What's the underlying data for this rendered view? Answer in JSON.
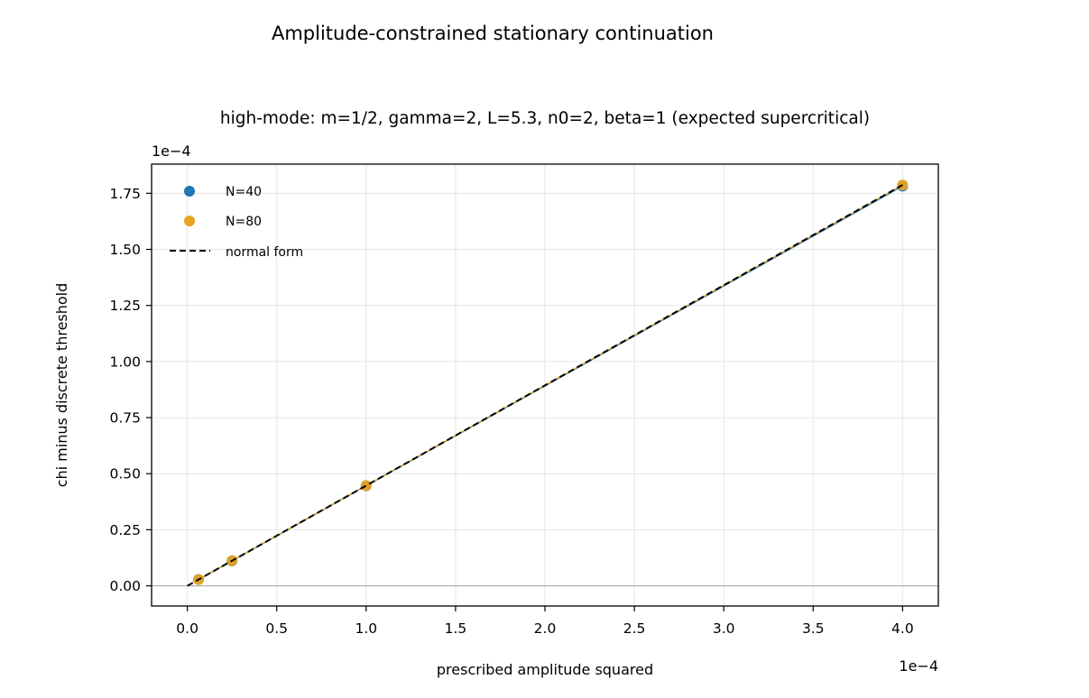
{
  "chart_data": {
    "type": "scatter",
    "suptitle": "Amplitude-constrained stationary continuation",
    "title": "high-mode: m=1/2, gamma=2, L=5.3, n0=2, beta=1 (expected supercritical)",
    "xlabel": "prescribed amplitude squared",
    "ylabel": "chi minus discrete threshold",
    "x_offset_label": "1e−4",
    "y_offset_label": "1e−4",
    "x_scale_factor": 0.0001,
    "y_scale_factor": 0.0001,
    "xlim": [
      -0.2,
      4.2
    ],
    "ylim": [
      -0.09,
      1.88
    ],
    "xticks": [
      0.0,
      0.5,
      1.0,
      1.5,
      2.0,
      2.5,
      3.0,
      3.5,
      4.0
    ],
    "xtick_labels": [
      "0.0",
      "0.5",
      "1.0",
      "1.5",
      "2.0",
      "2.5",
      "3.0",
      "3.5",
      "4.0"
    ],
    "yticks": [
      0.0,
      0.25,
      0.5,
      0.75,
      1.0,
      1.25,
      1.5,
      1.75
    ],
    "ytick_labels": [
      "0.00",
      "0.25",
      "0.50",
      "0.75",
      "1.00",
      "1.25",
      "1.50",
      "1.75"
    ],
    "grid": true,
    "legend_position": "top-left",
    "series": [
      {
        "name": "N=40",
        "kind": "scatter",
        "color": "#1f77b4",
        "x": [
          0.0625,
          0.25,
          1.0,
          4.0
        ],
        "y": [
          0.028,
          0.111,
          0.446,
          1.782
        ]
      },
      {
        "name": "N=80",
        "kind": "scatter",
        "color": "#e8a321",
        "x": [
          0.0625,
          0.25,
          1.0,
          4.0
        ],
        "y": [
          0.028,
          0.112,
          0.447,
          1.787
        ]
      },
      {
        "name": "normal form",
        "kind": "line",
        "style": "dashed",
        "color": "#000000",
        "x": [
          0.0,
          4.0
        ],
        "y": [
          0.0,
          1.787
        ]
      }
    ]
  }
}
